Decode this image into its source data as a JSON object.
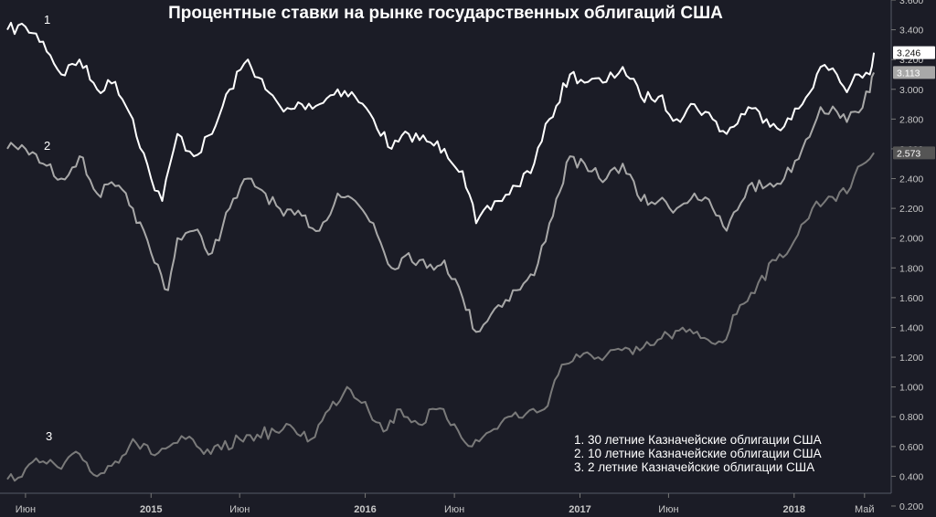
{
  "chart_data": {
    "type": "line",
    "title": "Процентные ставки на рынке государственных облигаций США",
    "xlabel": "",
    "ylabel": "",
    "x_range": [
      "2014-05-01",
      "2018-05-20"
    ],
    "ylim": [
      0.2,
      3.6
    ],
    "grid": false,
    "legend_position": "bottom-right",
    "x_ticks": [
      {
        "date": "2014-06-01",
        "label": "Июн",
        "bold": false
      },
      {
        "date": "2015-01-01",
        "label": "2015",
        "bold": true
      },
      {
        "date": "2015-06-01",
        "label": "Июн",
        "bold": false
      },
      {
        "date": "2016-01-01",
        "label": "2016",
        "bold": true
      },
      {
        "date": "2016-06-01",
        "label": "Июн",
        "bold": false
      },
      {
        "date": "2017-01-01",
        "label": "2017",
        "bold": true
      },
      {
        "date": "2017-06-01",
        "label": "Июн",
        "bold": false
      },
      {
        "date": "2018-01-01",
        "label": "2018",
        "bold": true
      },
      {
        "date": "2018-05-01",
        "label": "Май",
        "bold": false
      }
    ],
    "y_ticks": [
      {
        "value": 0.2,
        "label": "0.200"
      },
      {
        "value": 0.4,
        "label": "0.400"
      },
      {
        "value": 0.6,
        "label": "0.600"
      },
      {
        "value": 0.8,
        "label": "0.800"
      },
      {
        "value": 1.0,
        "label": "1.000"
      },
      {
        "value": 1.2,
        "label": "1.200"
      },
      {
        "value": 1.4,
        "label": "1.400"
      },
      {
        "value": 1.6,
        "label": "1.600"
      },
      {
        "value": 1.8,
        "label": "1.800"
      },
      {
        "value": 2.0,
        "label": "2.000"
      },
      {
        "value": 2.2,
        "label": "2.200"
      },
      {
        "value": 2.4,
        "label": "2.400"
      },
      {
        "value": 2.6,
        "label": "2.600"
      },
      {
        "value": 2.8,
        "label": "2.800"
      },
      {
        "value": 3.0,
        "label": "3.000"
      },
      {
        "value": 3.2,
        "label": "3.200"
      },
      {
        "value": 3.4,
        "label": "3.400"
      },
      {
        "value": 3.6,
        "label": "3.600"
      }
    ],
    "legend": [
      "1. 30 летние Казначейские облигации США",
      "2. 10 летние Казначейские облигации США",
      "3. 2 летние Казначейские облигации США"
    ],
    "series": [
      {
        "label": "1",
        "color": "#ffffff",
        "last_value_label": "3.246",
        "last_label_bg": "#ffffff",
        "last_label_fg": "#111111",
        "points": [
          [
            "2014-05-01",
            3.4
          ],
          [
            "2014-06-01",
            3.42
          ],
          [
            "2014-07-01",
            3.32
          ],
          [
            "2014-08-01",
            3.1
          ],
          [
            "2014-09-01",
            3.2
          ],
          [
            "2014-10-01",
            3.0
          ],
          [
            "2014-11-01",
            3.05
          ],
          [
            "2014-12-01",
            2.8
          ],
          [
            "2015-01-01",
            2.4
          ],
          [
            "2015-01-20",
            2.25
          ],
          [
            "2015-02-15",
            2.7
          ],
          [
            "2015-03-15",
            2.55
          ],
          [
            "2015-04-15",
            2.7
          ],
          [
            "2015-05-15",
            3.0
          ],
          [
            "2015-06-15",
            3.2
          ],
          [
            "2015-07-15",
            3.0
          ],
          [
            "2015-08-15",
            2.85
          ],
          [
            "2015-09-15",
            2.9
          ],
          [
            "2015-10-15",
            2.9
          ],
          [
            "2015-11-15",
            3.0
          ],
          [
            "2015-12-15",
            2.95
          ],
          [
            "2016-01-15",
            2.8
          ],
          [
            "2016-02-15",
            2.6
          ],
          [
            "2016-03-15",
            2.7
          ],
          [
            "2016-04-15",
            2.65
          ],
          [
            "2016-05-15",
            2.6
          ],
          [
            "2016-06-15",
            2.45
          ],
          [
            "2016-07-08",
            2.1
          ],
          [
            "2016-08-15",
            2.25
          ],
          [
            "2016-09-15",
            2.35
          ],
          [
            "2016-10-15",
            2.5
          ],
          [
            "2016-11-10",
            2.8
          ],
          [
            "2016-12-15",
            3.1
          ],
          [
            "2017-01-15",
            3.05
          ],
          [
            "2017-02-15",
            3.05
          ],
          [
            "2017-03-15",
            3.15
          ],
          [
            "2017-04-15",
            2.95
          ],
          [
            "2017-05-15",
            2.95
          ],
          [
            "2017-06-15",
            2.8
          ],
          [
            "2017-07-15",
            2.9
          ],
          [
            "2017-08-15",
            2.8
          ],
          [
            "2017-09-08",
            2.7
          ],
          [
            "2017-10-15",
            2.88
          ],
          [
            "2017-11-15",
            2.8
          ],
          [
            "2017-12-15",
            2.75
          ],
          [
            "2018-01-15",
            2.9
          ],
          [
            "2018-02-15",
            3.15
          ],
          [
            "2018-03-15",
            3.1
          ],
          [
            "2018-04-01",
            2.98
          ],
          [
            "2018-04-15",
            3.1
          ],
          [
            "2018-05-10",
            3.1
          ],
          [
            "2018-05-17",
            3.246
          ]
        ]
      },
      {
        "label": "2",
        "color": "#a8a8a8",
        "last_value_label": "3.113",
        "last_label_bg": "#a8a8a8",
        "last_label_fg": "#ffffff",
        "points": [
          [
            "2014-05-01",
            2.6
          ],
          [
            "2014-06-01",
            2.6
          ],
          [
            "2014-07-01",
            2.5
          ],
          [
            "2014-08-01",
            2.4
          ],
          [
            "2014-09-01",
            2.55
          ],
          [
            "2014-10-01",
            2.3
          ],
          [
            "2014-11-01",
            2.35
          ],
          [
            "2014-12-01",
            2.2
          ],
          [
            "2015-01-01",
            1.9
          ],
          [
            "2015-01-30",
            1.65
          ],
          [
            "2015-02-15",
            2.0
          ],
          [
            "2015-03-15",
            2.05
          ],
          [
            "2015-04-15",
            1.9
          ],
          [
            "2015-05-15",
            2.2
          ],
          [
            "2015-06-15",
            2.4
          ],
          [
            "2015-07-15",
            2.3
          ],
          [
            "2015-08-15",
            2.15
          ],
          [
            "2015-09-15",
            2.15
          ],
          [
            "2015-10-15",
            2.05
          ],
          [
            "2015-11-15",
            2.3
          ],
          [
            "2015-12-15",
            2.25
          ],
          [
            "2016-01-15",
            2.1
          ],
          [
            "2016-02-15",
            1.8
          ],
          [
            "2016-03-15",
            1.9
          ],
          [
            "2016-04-15",
            1.8
          ],
          [
            "2016-05-15",
            1.85
          ],
          [
            "2016-06-15",
            1.6
          ],
          [
            "2016-07-08",
            1.37
          ],
          [
            "2016-08-15",
            1.55
          ],
          [
            "2016-09-15",
            1.65
          ],
          [
            "2016-10-15",
            1.75
          ],
          [
            "2016-11-10",
            2.1
          ],
          [
            "2016-12-15",
            2.55
          ],
          [
            "2017-01-15",
            2.45
          ],
          [
            "2017-02-15",
            2.4
          ],
          [
            "2017-03-15",
            2.5
          ],
          [
            "2017-04-15",
            2.25
          ],
          [
            "2017-05-15",
            2.25
          ],
          [
            "2017-06-15",
            2.2
          ],
          [
            "2017-07-15",
            2.3
          ],
          [
            "2017-08-15",
            2.2
          ],
          [
            "2017-09-08",
            2.05
          ],
          [
            "2017-10-15",
            2.35
          ],
          [
            "2017-11-15",
            2.35
          ],
          [
            "2017-12-15",
            2.4
          ],
          [
            "2018-01-15",
            2.6
          ],
          [
            "2018-02-15",
            2.88
          ],
          [
            "2018-03-15",
            2.85
          ],
          [
            "2018-04-01",
            2.78
          ],
          [
            "2018-04-15",
            2.85
          ],
          [
            "2018-05-10",
            2.98
          ],
          [
            "2018-05-17",
            3.113
          ]
        ]
      },
      {
        "label": "3",
        "color": "#7a7a7a",
        "last_value_label": "2.573",
        "last_label_bg": "#555555",
        "last_label_fg": "#ffffff",
        "points": [
          [
            "2014-05-01",
            0.38
          ],
          [
            "2014-06-01",
            0.45
          ],
          [
            "2014-07-01",
            0.5
          ],
          [
            "2014-08-01",
            0.45
          ],
          [
            "2014-09-01",
            0.55
          ],
          [
            "2014-10-01",
            0.4
          ],
          [
            "2014-11-01",
            0.5
          ],
          [
            "2014-12-01",
            0.65
          ],
          [
            "2015-01-01",
            0.55
          ],
          [
            "2015-02-01",
            0.6
          ],
          [
            "2015-03-01",
            0.65
          ],
          [
            "2015-04-01",
            0.55
          ],
          [
            "2015-05-01",
            0.58
          ],
          [
            "2015-06-01",
            0.65
          ],
          [
            "2015-07-01",
            0.68
          ],
          [
            "2015-08-01",
            0.7
          ],
          [
            "2015-09-01",
            0.72
          ],
          [
            "2015-10-01",
            0.65
          ],
          [
            "2015-11-01",
            0.85
          ],
          [
            "2015-12-01",
            1.0
          ],
          [
            "2016-01-01",
            0.9
          ],
          [
            "2016-02-01",
            0.7
          ],
          [
            "2016-03-01",
            0.85
          ],
          [
            "2016-04-01",
            0.75
          ],
          [
            "2016-05-01",
            0.85
          ],
          [
            "2016-06-01",
            0.75
          ],
          [
            "2016-07-01",
            0.6
          ],
          [
            "2016-08-01",
            0.7
          ],
          [
            "2016-09-01",
            0.8
          ],
          [
            "2016-10-01",
            0.82
          ],
          [
            "2016-11-01",
            0.85
          ],
          [
            "2016-12-01",
            1.15
          ],
          [
            "2017-01-01",
            1.2
          ],
          [
            "2017-02-01",
            1.2
          ],
          [
            "2017-03-01",
            1.25
          ],
          [
            "2017-04-01",
            1.22
          ],
          [
            "2017-05-01",
            1.28
          ],
          [
            "2017-06-01",
            1.35
          ],
          [
            "2017-07-01",
            1.37
          ],
          [
            "2017-08-01",
            1.33
          ],
          [
            "2017-09-01",
            1.3
          ],
          [
            "2017-10-01",
            1.55
          ],
          [
            "2017-11-01",
            1.7
          ],
          [
            "2017-12-01",
            1.85
          ],
          [
            "2018-01-01",
            1.98
          ],
          [
            "2018-02-01",
            2.2
          ],
          [
            "2018-03-01",
            2.28
          ],
          [
            "2018-04-01",
            2.3
          ],
          [
            "2018-04-20",
            2.48
          ],
          [
            "2018-05-17",
            2.573
          ]
        ]
      }
    ]
  }
}
